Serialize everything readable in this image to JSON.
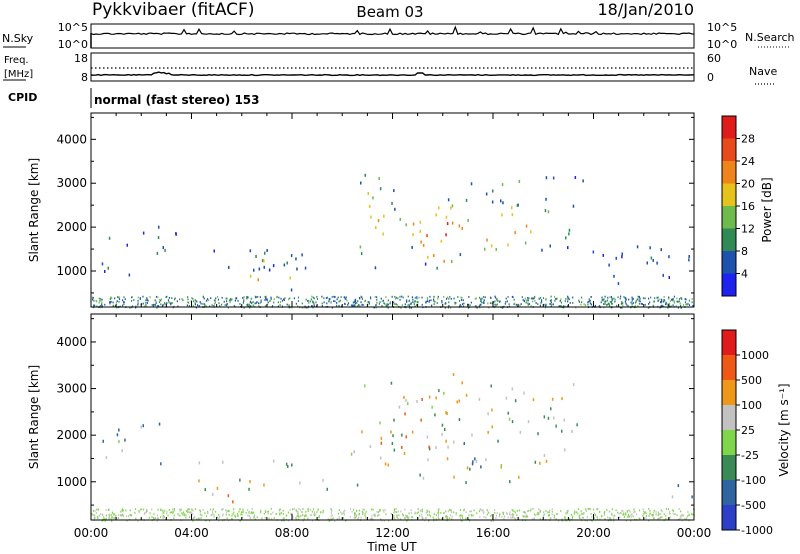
{
  "header": {
    "station": "Pykkvibaer (fitACF)",
    "beam": "Beam 03",
    "date": "18/Jan/2010"
  },
  "chart_data": [
    {
      "type": "line",
      "panel": "noise",
      "left_labels": [
        "N.Sky"
      ],
      "right_labels": [
        "N.Search"
      ],
      "left_ticks": [
        "10^5",
        "10^0"
      ],
      "right_ticks": [
        "10^5",
        "10^0"
      ],
      "series": [
        {
          "name": "N.Sky",
          "style": "solid",
          "values_note": "",
          "x": [
            0,
            24
          ],
          "y": [
            100000,
            100000
          ]
        },
        {
          "name": "N.Search",
          "style": "dotted",
          "x": [
            0,
            24
          ],
          "y": [
            100000,
            100000
          ]
        }
      ]
    },
    {
      "type": "line",
      "panel": "frequency",
      "left_labels": [
        "Freq.",
        "[MHz]"
      ],
      "right_labels": [
        "Nave"
      ],
      "left_ticks": [
        "18",
        "8"
      ],
      "right_ticks": [
        "60",
        "0"
      ],
      "series": [
        {
          "name": "Freq.",
          "style": "solid",
          "x": [
            0,
            24
          ],
          "y": [
            9,
            9
          ]
        },
        {
          "name": "Nave",
          "style": "dotted",
          "x": [
            0,
            24
          ],
          "y": [
            26,
            26
          ]
        }
      ]
    },
    {
      "type": "text",
      "panel": "cpid",
      "label": "CPID",
      "value": "normal (fast stereo) 153"
    },
    {
      "type": "heatmap",
      "panel": "power",
      "ylabel": "Slant Range [km]",
      "ylim": [
        180,
        4600
      ],
      "yticks": [
        "1000",
        "2000",
        "3000",
        "4000"
      ],
      "colorbar": {
        "label": "Power [dB]",
        "ticks": [
          "4",
          "8",
          "12",
          "16",
          "20",
          "24",
          "28"
        ],
        "colors": [
          "#1e22f0",
          "#1d52ae",
          "#2f8a56",
          "#6dbb4c",
          "#e5c31a",
          "#f0841a",
          "#e84a1b",
          "#e11b1b"
        ]
      },
      "regions": [
        {
          "x": [
            0.4,
            1.5
          ],
          "y": [
            850,
            1900
          ],
          "value": 14
        },
        {
          "x": [
            1.4,
            3.8
          ],
          "y": [
            1150,
            2000
          ],
          "value": 8
        },
        {
          "x": [
            3.7,
            8.5
          ],
          "y": [
            950,
            1500
          ],
          "value": 6
        },
        {
          "x": [
            5.4,
            9.0
          ],
          "y": [
            850,
            1550
          ],
          "value": 12
        },
        {
          "x": [
            5.8,
            8.4
          ],
          "y": [
            500,
            1050
          ],
          "value": 22
        },
        {
          "x": [
            10.3,
            12.2
          ],
          "y": [
            950,
            3350
          ],
          "value": 16
        },
        {
          "x": [
            11.2,
            19.4
          ],
          "y": [
            1350,
            2700
          ],
          "value": 20
        },
        {
          "x": [
            12.8,
            15.2
          ],
          "y": [
            1050,
            2600
          ],
          "value": 26
        },
        {
          "x": [
            15.0,
            19.6
          ],
          "y": [
            2450,
            3300
          ],
          "value": 10
        },
        {
          "x": [
            19.6,
            24.0
          ],
          "y": [
            500,
            1750
          ],
          "value": 6
        }
      ]
    },
    {
      "type": "heatmap",
      "panel": "velocity",
      "ylabel": "Slant Range [km]",
      "ylim": [
        180,
        4600
      ],
      "yticks": [
        "1000",
        "2000",
        "3000",
        "4000"
      ],
      "colorbar": {
        "label": "Velocity [m s⁻¹]",
        "ticks": [
          "1000",
          "500",
          "100",
          "25",
          "-25",
          "-100",
          "-500",
          "-1000"
        ],
        "colors": [
          "#2b3fc9",
          "#2e64a0",
          "#3a8a55",
          "#7fd64a",
          "#c2c2c2",
          "#ee9718",
          "#ee5a16",
          "#e11b1b"
        ]
      },
      "regions": [
        {
          "x": [
            0.3,
            2.8
          ],
          "y": [
            1000,
            2400
          ],
          "value": 300
        },
        {
          "x": [
            4.0,
            9.8
          ],
          "y": [
            800,
            1500
          ],
          "value": 0
        },
        {
          "x": [
            4.2,
            7.2
          ],
          "y": [
            550,
            900
          ],
          "value": -120
        },
        {
          "x": [
            10.3,
            19.4
          ],
          "y": [
            900,
            3350
          ],
          "value": 0
        },
        {
          "x": [
            11.5,
            14.2
          ],
          "y": [
            1400,
            2900
          ],
          "value": -150
        },
        {
          "x": [
            14.5,
            16.5
          ],
          "y": [
            1000,
            2000
          ],
          "value": 200
        },
        {
          "x": [
            22.5,
            24.0
          ],
          "y": [
            500,
            1200
          ],
          "value": 200
        }
      ]
    }
  ],
  "time_axis": {
    "xlabel": "Time UT",
    "xlim": [
      0,
      24
    ],
    "ticks": [
      {
        "hour": 0,
        "label": "00:00"
      },
      {
        "hour": 4,
        "label": "04:00"
      },
      {
        "hour": 8,
        "label": "08:00"
      },
      {
        "hour": 12,
        "label": "12:00"
      },
      {
        "hour": 16,
        "label": "16:00"
      },
      {
        "hour": 20,
        "label": "20:00"
      },
      {
        "hour": 24,
        "label": "00:00"
      }
    ]
  }
}
